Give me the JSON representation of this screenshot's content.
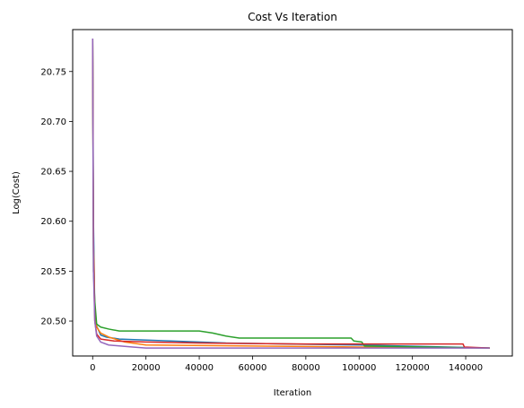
{
  "chart_data": {
    "type": "line",
    "title": "Cost Vs Iteration",
    "xlabel": "Iteration",
    "ylabel": "Log(Cost)",
    "xlim": [
      -7500,
      157500
    ],
    "ylim": [
      20.465,
      20.792
    ],
    "xticks": [
      0,
      20000,
      40000,
      60000,
      80000,
      100000,
      120000,
      140000
    ],
    "yticks": [
      20.5,
      20.55,
      20.6,
      20.65,
      20.7,
      20.75
    ],
    "xtick_labels": [
      "0",
      "20000",
      "40000",
      "60000",
      "80000",
      "100000",
      "120000",
      "140000"
    ],
    "ytick_labels": [
      "20.50",
      "20.55",
      "20.60",
      "20.65",
      "20.70",
      "20.75"
    ],
    "grid": false,
    "legend": "none",
    "series": [
      {
        "color": "#1f77b4",
        "points": [
          [
            0,
            20.783
          ],
          [
            300,
            20.6
          ],
          [
            800,
            20.51
          ],
          [
            1500,
            20.495
          ],
          [
            3000,
            20.486
          ],
          [
            5000,
            20.484
          ],
          [
            10000,
            20.482
          ],
          [
            20000,
            20.481
          ],
          [
            50000,
            20.478
          ],
          [
            100000,
            20.476
          ],
          [
            149000,
            20.473
          ]
        ]
      },
      {
        "color": "#ff7f0e",
        "points": [
          [
            0,
            20.783
          ],
          [
            300,
            20.58
          ],
          [
            800,
            20.51
          ],
          [
            1500,
            20.494
          ],
          [
            3000,
            20.488
          ],
          [
            6000,
            20.484
          ],
          [
            12000,
            20.479
          ],
          [
            20000,
            20.476
          ],
          [
            60000,
            20.475
          ],
          [
            100000,
            20.474
          ],
          [
            149000,
            20.473
          ]
        ]
      },
      {
        "color": "#2ca02c",
        "points": [
          [
            0,
            20.783
          ],
          [
            300,
            20.55
          ],
          [
            800,
            20.52
          ],
          [
            1500,
            20.497
          ],
          [
            3000,
            20.494
          ],
          [
            6000,
            20.492
          ],
          [
            10000,
            20.49
          ],
          [
            40000,
            20.49
          ],
          [
            45000,
            20.488
          ],
          [
            50000,
            20.485
          ],
          [
            55000,
            20.483
          ],
          [
            97000,
            20.483
          ],
          [
            98000,
            20.48
          ],
          [
            101000,
            20.479
          ],
          [
            102000,
            20.475
          ],
          [
            149000,
            20.473
          ]
        ]
      },
      {
        "color": "#d62728",
        "points": [
          [
            0,
            20.783
          ],
          [
            300,
            20.57
          ],
          [
            800,
            20.5
          ],
          [
            1500,
            20.487
          ],
          [
            3000,
            20.482
          ],
          [
            8000,
            20.48
          ],
          [
            20000,
            20.479
          ],
          [
            40000,
            20.478
          ],
          [
            80000,
            20.477
          ],
          [
            139000,
            20.477
          ],
          [
            139500,
            20.474
          ],
          [
            149000,
            20.473
          ]
        ]
      },
      {
        "color": "#9467bd",
        "points": [
          [
            0,
            20.783
          ],
          [
            300,
            20.55
          ],
          [
            800,
            20.5
          ],
          [
            1500,
            20.485
          ],
          [
            3000,
            20.479
          ],
          [
            6000,
            20.476
          ],
          [
            15000,
            20.474
          ],
          [
            20000,
            20.473
          ],
          [
            149000,
            20.473
          ]
        ]
      }
    ]
  }
}
